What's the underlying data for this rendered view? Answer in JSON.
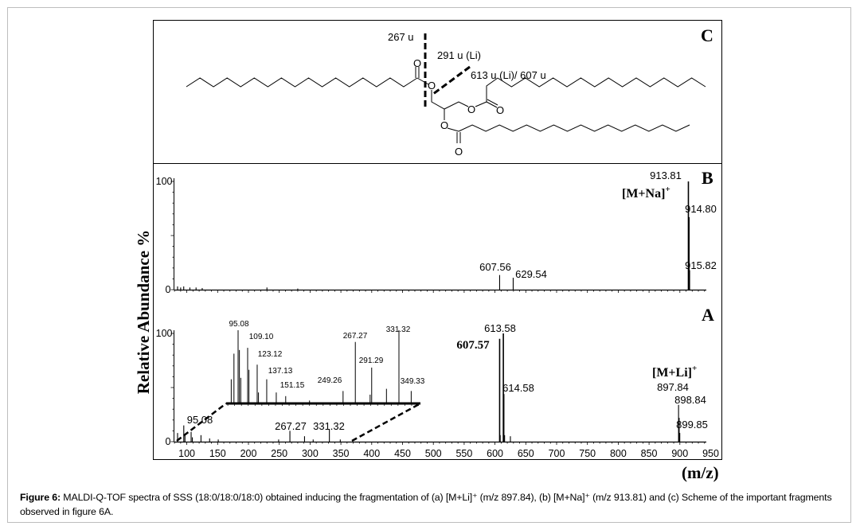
{
  "figure": {
    "caption_label": "Figure 6:",
    "caption_text": " MALDI-Q-TOF spectra of SSS (18:0/18:0/18:0) obtained inducing the fragmentation of (a) [M+Li]⁺ (m/z 897.84), (b) [M+Na]⁺ (m/z 913.81) and (c) Scheme of the important fragments observed in figure 6A."
  },
  "scheme": {
    "panel_label": "C",
    "labels": [
      "267 u",
      "291 u (Li)",
      "613 u (Li)/ 607 u"
    ],
    "atoms": [
      "O",
      "O",
      "O",
      "O",
      "O",
      "O"
    ]
  },
  "chart_data": [
    {
      "type": "bar",
      "panel_label": "B",
      "xlabel": "(m/z)",
      "ylabel": "Relative Abundance %",
      "xlim": [
        79,
        950
      ],
      "ylim": [
        0,
        100
      ],
      "yticks": [
        "0",
        "100"
      ],
      "ion_label": {
        "text": "[M+Na]",
        "charge": "+"
      },
      "peaks": [
        {
          "x": 85,
          "y": 3
        },
        {
          "x": 90,
          "y": 2
        },
        {
          "x": 95,
          "y": 3
        },
        {
          "x": 105,
          "y": 2
        },
        {
          "x": 115,
          "y": 2
        },
        {
          "x": 125,
          "y": 1.5
        },
        {
          "x": 230,
          "y": 2
        },
        {
          "x": 280,
          "y": 1
        },
        {
          "x": 607.56,
          "y": 13.5,
          "label": "607.56"
        },
        {
          "x": 629.54,
          "y": 11,
          "label": "629.54"
        },
        {
          "x": 913.81,
          "y": 100,
          "label": "913.81"
        },
        {
          "x": 914.8,
          "y": 67,
          "label": "914.80"
        },
        {
          "x": 915.82,
          "y": 18,
          "label": "915.82"
        }
      ]
    },
    {
      "type": "bar",
      "panel_label": "A",
      "xlabel": "(m/z)",
      "ylabel": "Relative Abundance %",
      "xlim": [
        79,
        950
      ],
      "ylim": [
        0,
        100
      ],
      "yticks": [
        "0",
        "100"
      ],
      "xticks": [
        100,
        150,
        200,
        250,
        300,
        350,
        400,
        450,
        500,
        550,
        600,
        650,
        700,
        750,
        800,
        850,
        900,
        950
      ],
      "ion_label": {
        "text": "[M+Li]",
        "charge": "+"
      },
      "peaks": [
        {
          "x": 85,
          "y": 8
        },
        {
          "x": 95.08,
          "y": 15,
          "label": "95.08"
        },
        {
          "x": 97,
          "y": 6
        },
        {
          "x": 107,
          "y": 9
        },
        {
          "x": 109,
          "y": 4
        },
        {
          "x": 123,
          "y": 6
        },
        {
          "x": 137,
          "y": 3
        },
        {
          "x": 151,
          "y": 2
        },
        {
          "x": 249,
          "y": 2
        },
        {
          "x": 267.27,
          "y": 10,
          "label": "267.27"
        },
        {
          "x": 291,
          "y": 5
        },
        {
          "x": 305,
          "y": 2
        },
        {
          "x": 331.32,
          "y": 11,
          "label": "331.32"
        },
        {
          "x": 349,
          "y": 2
        },
        {
          "x": 607.57,
          "y": 95,
          "label": "607.57",
          "bold": true
        },
        {
          "x": 608.5,
          "y": 6
        },
        {
          "x": 613.58,
          "y": 100,
          "label": "613.58"
        },
        {
          "x": 614.58,
          "y": 44,
          "label": "614.58"
        },
        {
          "x": 615.6,
          "y": 6
        },
        {
          "x": 625,
          "y": 5
        },
        {
          "x": 897.84,
          "y": 34,
          "label": "897.84"
        },
        {
          "x": 898.84,
          "y": 22,
          "label": "898.84"
        },
        {
          "x": 899.85,
          "y": 8,
          "label": "899.85"
        }
      ],
      "inset": {
        "xlim": [
          77,
          363
        ],
        "peaks": [
          {
            "x": 85,
            "y": 33
          },
          {
            "x": 89,
            "y": 68
          },
          {
            "x": 95.08,
            "y": 100,
            "label": "95.08"
          },
          {
            "x": 97,
            "y": 73
          },
          {
            "x": 99,
            "y": 35
          },
          {
            "x": 109.1,
            "y": 76,
            "label": "109.10"
          },
          {
            "x": 111,
            "y": 46
          },
          {
            "x": 123.12,
            "y": 53,
            "label": "123.12"
          },
          {
            "x": 125,
            "y": 15
          },
          {
            "x": 137.13,
            "y": 33,
            "label": "137.13"
          },
          {
            "x": 151.15,
            "y": 15,
            "label": "151.15"
          },
          {
            "x": 165,
            "y": 10
          },
          {
            "x": 200,
            "y": 4
          },
          {
            "x": 249.26,
            "y": 17,
            "label": "249.26"
          },
          {
            "x": 267.27,
            "y": 84,
            "label": "267.27"
          },
          {
            "x": 289,
            "y": 12
          },
          {
            "x": 291.29,
            "y": 49,
            "label": "291.29"
          },
          {
            "x": 313,
            "y": 20
          },
          {
            "x": 331.32,
            "y": 100,
            "label": "331.32"
          },
          {
            "x": 349.33,
            "y": 17,
            "label": "349.33"
          }
        ]
      }
    }
  ]
}
